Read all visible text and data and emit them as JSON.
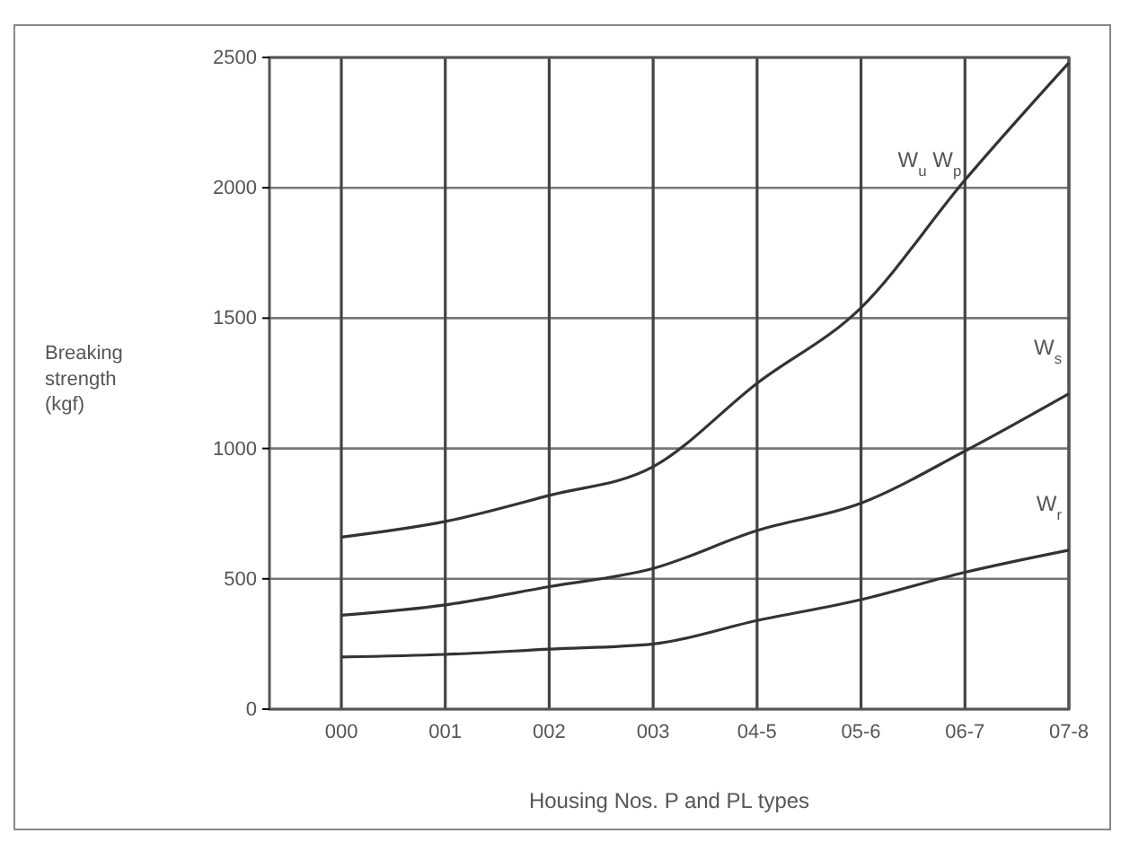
{
  "chart_data": {
    "type": "line",
    "xlabel": "Housing Nos. P and PL types",
    "ylabel": "Breaking strength (kgf)",
    "categories": [
      "000",
      "001",
      "002",
      "003",
      "04-5",
      "05-6",
      "06-7",
      "07-8"
    ],
    "ylim": [
      0,
      2500
    ],
    "yticks": [
      0,
      500,
      1000,
      1500,
      2000,
      2500
    ],
    "grid": true,
    "series": [
      {
        "name": "W$_{u}$ W$_{p}$",
        "color": "#333333",
        "values": [
          660,
          720,
          820,
          930,
          1250,
          1540,
          2030,
          2480
        ]
      },
      {
        "name": "W$_{s}$",
        "color": "#333333",
        "values": [
          360,
          400,
          470,
          540,
          685,
          790,
          990,
          1210
        ]
      },
      {
        "name": "W$_{r}$",
        "color": "#333333",
        "values": [
          200,
          210,
          230,
          250,
          340,
          420,
          525,
          610
        ]
      }
    ]
  }
}
